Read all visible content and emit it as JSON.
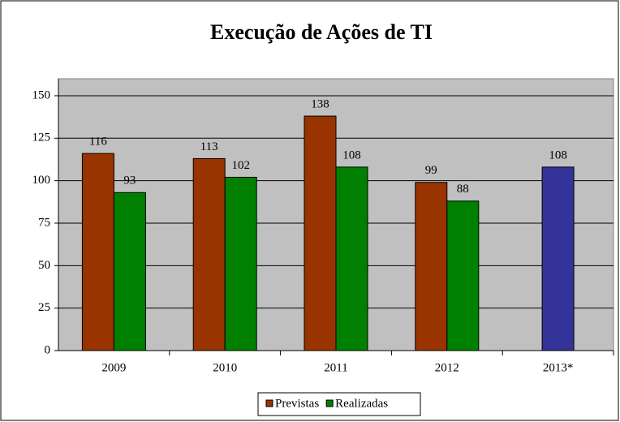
{
  "chart_data": {
    "type": "bar",
    "title": "Execução de Ações de TI",
    "categories": [
      "2009",
      "2010",
      "2011",
      "2012",
      "2013*"
    ],
    "series": [
      {
        "name": "Previstas",
        "color": "#993300",
        "point_colors": [
          "#993300",
          "#993300",
          "#993300",
          "#993300",
          "#333399"
        ],
        "values": [
          116,
          113,
          138,
          99,
          108
        ]
      },
      {
        "name": "Realizadas",
        "color": "#008000",
        "values": [
          93,
          102,
          108,
          88,
          null
        ]
      }
    ],
    "ylim": [
      0,
      160
    ],
    "yticks": [
      0,
      25,
      50,
      75,
      100,
      125,
      150
    ],
    "grid": true,
    "legend": "bottom"
  }
}
